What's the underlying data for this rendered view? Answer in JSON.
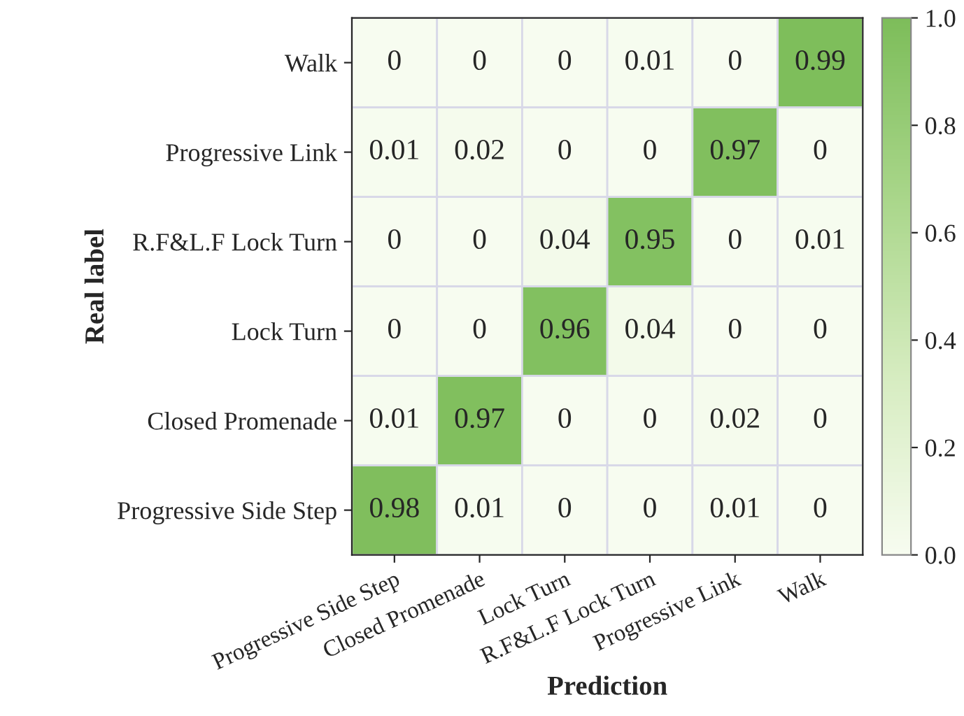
{
  "chart_data": {
    "type": "heatmap",
    "xlabel": "Prediction",
    "ylabel": "Real label",
    "categories": [
      "Progressive Side Step",
      "Closed Promenade",
      "Lock Turn",
      "R.F&L.F Lock Turn",
      "Progressive Link",
      "Walk"
    ],
    "y_categories": [
      "Walk",
      "Progressive Link",
      "R.F&L.F Lock Turn",
      "Lock Turn",
      "Closed Promenade",
      "Progressive Side Step"
    ],
    "cells": [
      [
        0,
        0,
        0,
        0.01,
        0,
        0.99
      ],
      [
        0.01,
        0.02,
        0,
        0,
        0.97,
        0
      ],
      [
        0,
        0,
        0.04,
        0.95,
        0,
        0.01
      ],
      [
        0,
        0,
        0.96,
        0.04,
        0,
        0
      ],
      [
        0.01,
        0.97,
        0,
        0,
        0.02,
        0
      ],
      [
        0.98,
        0.01,
        0,
        0,
        0.01,
        0
      ]
    ],
    "clim": [
      0,
      1
    ],
    "data_labels": true,
    "cticks": [
      {
        "value": 0,
        "label": "0.0"
      },
      {
        "value": 0.2,
        "label": "0.2"
      },
      {
        "value": 0.4,
        "label": "0.4"
      },
      {
        "value": 0.6,
        "label": "0.6"
      },
      {
        "value": 0.8,
        "label": "0.8"
      },
      {
        "value": 1,
        "label": "1.0"
      }
    ]
  }
}
